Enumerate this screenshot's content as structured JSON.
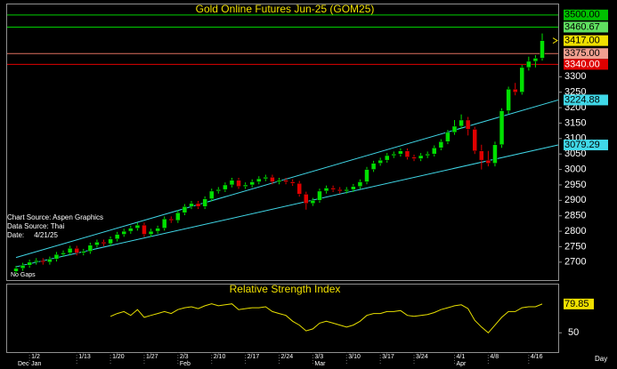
{
  "chart_data": {
    "type": "candlestick",
    "title": "Gold Online Futures Jun-25 (GOM25)",
    "categories": [
      null,
      null,
      "1/2",
      null,
      null,
      null,
      null,
      null,
      null,
      "1/13",
      null,
      null,
      null,
      null,
      "1/20",
      null,
      null,
      null,
      null,
      "1/27",
      null,
      null,
      null,
      null,
      "2/3",
      null,
      null,
      null,
      null,
      "2/10",
      null,
      null,
      null,
      null,
      "2/17",
      null,
      null,
      null,
      null,
      "2/24",
      null,
      null,
      null,
      null,
      "3/3",
      null,
      null,
      null,
      null,
      "3/10",
      null,
      null,
      null,
      null,
      "3/17",
      null,
      null,
      null,
      null,
      "3/24",
      null,
      null,
      null,
      null,
      null,
      "4/1",
      null,
      null,
      null,
      null,
      "4/8",
      null,
      null,
      null,
      null,
      null,
      "4/16",
      null,
      null
    ],
    "months": [
      "Dec",
      null,
      "Jan",
      null,
      null,
      null,
      null,
      null,
      null,
      null,
      null,
      null,
      null,
      null,
      null,
      null,
      null,
      null,
      null,
      null,
      null,
      null,
      null,
      null,
      "Feb",
      null,
      null,
      null,
      null,
      null,
      null,
      null,
      null,
      null,
      null,
      null,
      null,
      null,
      null,
      null,
      null,
      null,
      null,
      null,
      "Mar",
      null,
      null,
      null,
      null,
      null,
      null,
      null,
      null,
      null,
      null,
      null,
      null,
      null,
      null,
      null,
      null,
      null,
      null,
      null,
      null,
      "Apr",
      null,
      null,
      null,
      null,
      null,
      null,
      null,
      null,
      null,
      null,
      null,
      null,
      null
    ],
    "open": [
      2670,
      2680,
      2690,
      2700,
      2705,
      2700,
      2710,
      2725,
      2730,
      2745,
      2730,
      2735,
      2755,
      2765,
      2760,
      2775,
      2790,
      2800,
      2810,
      2820,
      2790,
      2800,
      2810,
      2840,
      2835,
      2860,
      2880,
      2890,
      2880,
      2905,
      2930,
      2935,
      2950,
      2965,
      2945,
      2950,
      2960,
      2970,
      2975,
      2960,
      2965,
      2960,
      2955,
      2920,
      2890,
      2900,
      2930,
      2940,
      2935,
      2930,
      2935,
      2945,
      2960,
      3000,
      3020,
      3030,
      3045,
      3050,
      3060,
      3040,
      3035,
      3045,
      3050,
      3070,
      3090,
      3120,
      3140,
      3160,
      3130,
      3060,
      3030,
      3020,
      3080,
      3190,
      3260,
      3250,
      3330,
      3350,
      3360
    ],
    "high": [
      2688,
      2698,
      2708,
      2713,
      2713,
      2718,
      2733,
      2738,
      2753,
      2753,
      2743,
      2763,
      2773,
      2773,
      2783,
      2798,
      2808,
      2818,
      2828,
      2828,
      2808,
      2818,
      2848,
      2848,
      2868,
      2888,
      2898,
      2898,
      2913,
      2938,
      2943,
      2958,
      2973,
      2973,
      2958,
      2968,
      2978,
      2983,
      2983,
      2973,
      2973,
      2968,
      2963,
      2928,
      2908,
      2938,
      2948,
      2948,
      2943,
      2943,
      2953,
      2968,
      3008,
      3028,
      3038,
      3053,
      3058,
      3068,
      3068,
      3048,
      3053,
      3058,
      3078,
      3098,
      3128,
      3160,
      3178,
      3170,
      3138,
      3080,
      3060,
      3090,
      3198,
      3268,
      3280,
      3338,
      3365,
      3370,
      3440
    ],
    "low": [
      2662,
      2672,
      2682,
      2692,
      2692,
      2692,
      2702,
      2717,
      2722,
      2722,
      2722,
      2727,
      2747,
      2752,
      2752,
      2767,
      2782,
      2792,
      2802,
      2782,
      2782,
      2792,
      2802,
      2827,
      2827,
      2852,
      2872,
      2872,
      2872,
      2897,
      2922,
      2927,
      2942,
      2937,
      2937,
      2942,
      2952,
      2962,
      2952,
      2952,
      2952,
      2947,
      2912,
      2870,
      2882,
      2892,
      2922,
      2927,
      2922,
      2922,
      2927,
      2937,
      2952,
      2992,
      3012,
      3022,
      3037,
      3042,
      3032,
      3027,
      3027,
      3037,
      3042,
      3062,
      3082,
      3112,
      3132,
      3110,
      3050,
      3000,
      3010,
      3010,
      3070,
      3180,
      3240,
      3242,
      3320,
      3330,
      3352
    ],
    "close": [
      2680,
      2690,
      2700,
      2705,
      2700,
      2710,
      2725,
      2730,
      2745,
      2730,
      2735,
      2755,
      2765,
      2760,
      2775,
      2790,
      2800,
      2810,
      2820,
      2790,
      2800,
      2810,
      2840,
      2835,
      2860,
      2880,
      2890,
      2880,
      2905,
      2930,
      2935,
      2950,
      2965,
      2945,
      2950,
      2960,
      2970,
      2975,
      2960,
      2965,
      2960,
      2955,
      2920,
      2890,
      2900,
      2930,
      2940,
      2935,
      2930,
      2935,
      2945,
      2960,
      3000,
      3020,
      3030,
      3045,
      3050,
      3060,
      3040,
      3035,
      3045,
      3050,
      3070,
      3090,
      3120,
      3140,
      3160,
      3130,
      3060,
      3030,
      3020,
      3080,
      3190,
      3260,
      3250,
      3330,
      3350,
      3360,
      3417
    ],
    "up_color": "#00e000",
    "down_color": "#e00000",
    "ylim": [
      2642,
      3534
    ],
    "yticks": [
      2700,
      2750,
      2800,
      2850,
      2900,
      2950,
      3000,
      3050,
      3100,
      3150,
      3200,
      3250,
      3300
    ],
    "last_price_label": "3417.00",
    "levels": [
      {
        "value": 3500,
        "label": "3500.00",
        "color": "#00d000",
        "box": "#00c000"
      },
      {
        "value": 3460.67,
        "label": "3460.67",
        "color": "#00d000",
        "box": "#60e060"
      },
      {
        "value": 3375,
        "label": "3375.00",
        "color": "#e07060",
        "box": "#f0a090"
      },
      {
        "value": 3340,
        "label": "3340.00",
        "color": "#e00000",
        "box": "#e00000"
      }
    ],
    "channels": [
      {
        "values": [
          2715,
          3224.88
        ],
        "end_label": "3224.88",
        "color": "#40d8e8"
      },
      {
        "values": [
          2685,
          3079.29
        ],
        "end_label": "3079.29",
        "color": "#40d8e8"
      }
    ],
    "annotations": [
      "Chart Source: Aspen Graphics",
      "Data Source: Thai",
      "Date:     4/21/25"
    ],
    "note": "No Gaps",
    "x_unit": "Day",
    "rsi": {
      "title": "Relative Strength Index",
      "color": "#e8e000",
      "values": [
        null,
        null,
        null,
        null,
        null,
        null,
        null,
        null,
        null,
        null,
        null,
        null,
        null,
        null,
        67,
        70,
        72,
        68,
        74,
        66,
        68,
        70,
        72,
        70,
        74,
        76,
        77,
        75,
        78,
        80,
        78,
        79,
        80,
        74,
        75,
        76,
        76,
        77,
        72,
        70,
        68,
        62,
        58,
        52,
        54,
        60,
        62,
        60,
        58,
        56,
        58,
        62,
        68,
        70,
        70,
        72,
        72,
        73,
        68,
        67,
        68,
        69,
        71,
        74,
        76,
        78,
        79,
        75,
        63,
        56,
        50,
        58,
        66,
        72,
        72,
        76,
        77,
        77,
        79.85
      ],
      "last_label": "79.85",
      "ylim": [
        30,
        100
      ],
      "yticks": [
        50
      ]
    }
  }
}
